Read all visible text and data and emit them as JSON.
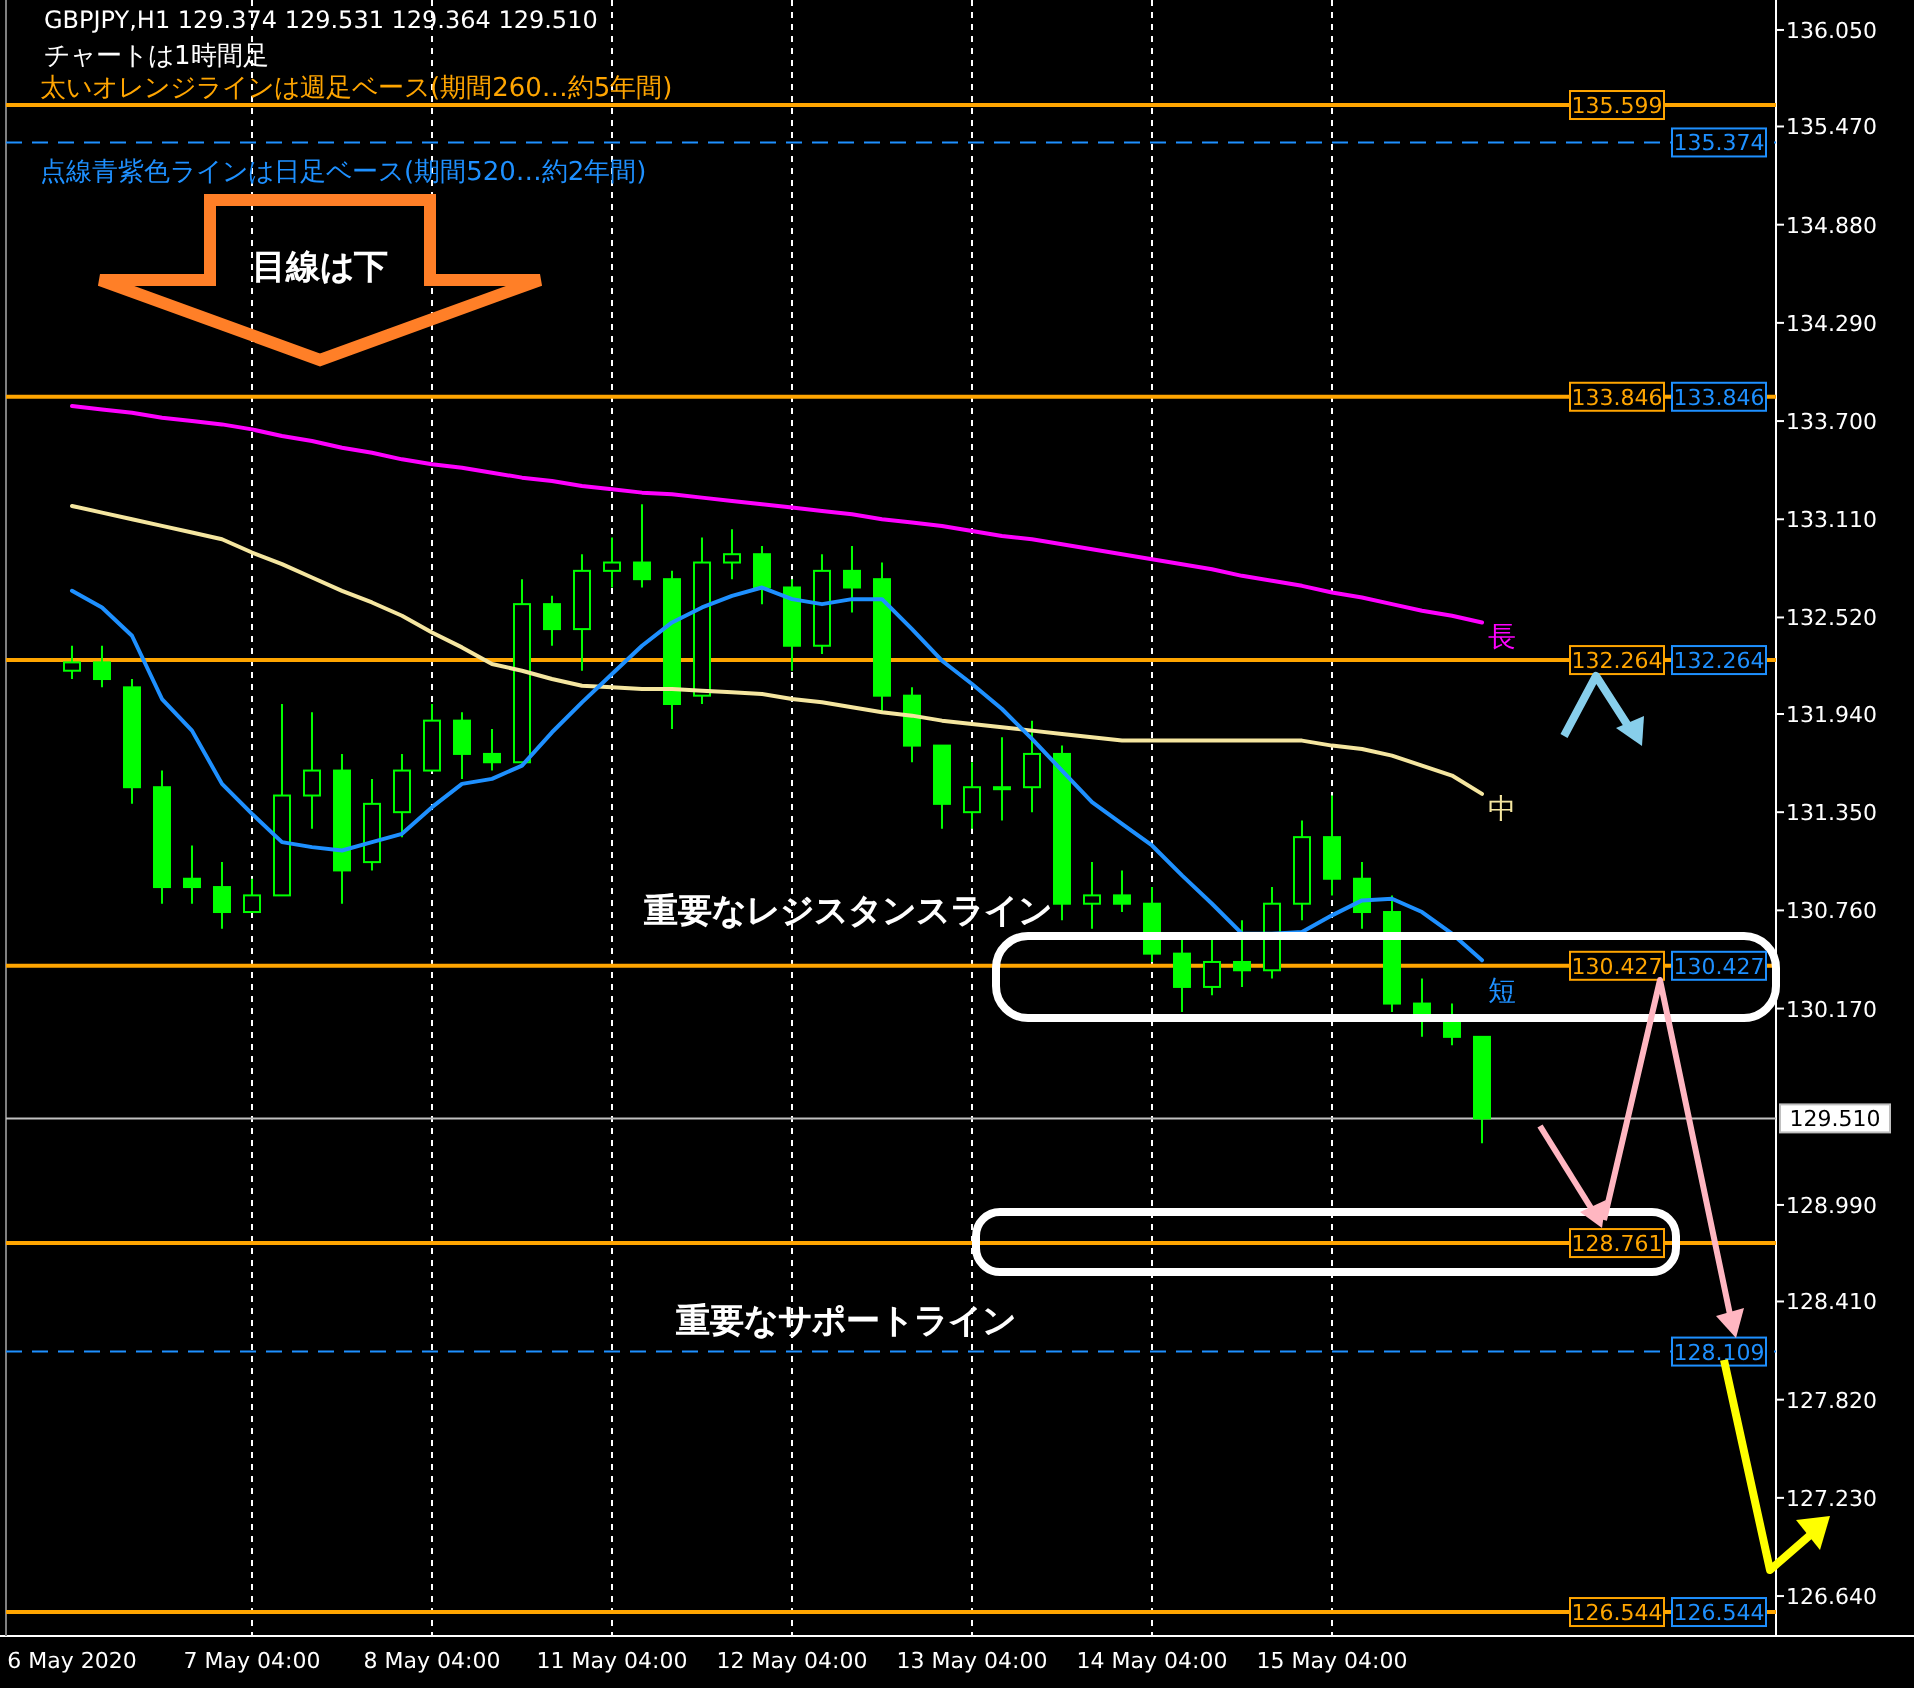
{
  "chart_data": {
    "type": "candlestick",
    "color": "#00ff00",
    "categories": [
      "6 May 2020",
      null,
      null,
      null,
      null,
      null,
      "7 May 04:00",
      null,
      null,
      null,
      null,
      null,
      "8 May 04:00",
      null,
      null,
      null,
      null,
      null,
      "11 May 04:00",
      null,
      null,
      null,
      null,
      null,
      "12 May 04:00",
      null,
      null,
      null,
      null,
      null,
      "13 May 04:00",
      null,
      null,
      null,
      null,
      null,
      "14 May 04:00",
      null,
      null,
      null,
      null,
      null,
      "15 May 04:00",
      null,
      null,
      null,
      null,
      null
    ],
    "ohlc": [
      [
        132.2,
        132.35,
        132.15,
        132.25
      ],
      [
        132.25,
        132.35,
        132.1,
        132.15
      ],
      [
        132.1,
        132.15,
        131.4,
        131.5
      ],
      [
        131.5,
        131.6,
        130.8,
        130.9
      ],
      [
        130.95,
        131.15,
        130.8,
        130.9
      ],
      [
        130.9,
        131.05,
        130.65,
        130.75
      ],
      [
        130.75,
        130.95,
        130.75,
        130.85
      ],
      [
        130.85,
        132.0,
        130.85,
        131.45
      ],
      [
        131.45,
        131.95,
        131.25,
        131.6
      ],
      [
        131.6,
        131.7,
        130.8,
        131.0
      ],
      [
        131.05,
        131.55,
        131.0,
        131.4
      ],
      [
        131.35,
        131.7,
        131.2,
        131.6
      ],
      [
        131.6,
        132.0,
        131.6,
        131.9
      ],
      [
        131.9,
        131.95,
        131.55,
        131.7
      ],
      [
        131.7,
        131.85,
        131.6,
        131.65
      ],
      [
        131.65,
        132.75,
        131.65,
        132.6
      ],
      [
        132.6,
        132.65,
        132.35,
        132.45
      ],
      [
        132.45,
        132.9,
        132.2,
        132.8
      ],
      [
        132.8,
        133.0,
        132.7,
        132.85
      ],
      [
        132.85,
        133.2,
        132.7,
        132.75
      ],
      [
        132.75,
        132.8,
        131.85,
        132.0
      ],
      [
        132.05,
        133.0,
        132.0,
        132.85
      ],
      [
        132.85,
        133.05,
        132.75,
        132.9
      ],
      [
        132.9,
        132.95,
        132.6,
        132.7
      ],
      [
        132.7,
        132.75,
        132.2,
        132.35
      ],
      [
        132.35,
        132.9,
        132.3,
        132.8
      ],
      [
        132.8,
        132.95,
        132.55,
        132.7
      ],
      [
        132.75,
        132.85,
        131.95,
        132.05
      ],
      [
        132.05,
        132.1,
        131.65,
        131.75
      ],
      [
        131.75,
        131.75,
        131.25,
        131.4
      ],
      [
        131.35,
        131.65,
        131.25,
        131.5
      ],
      [
        131.5,
        131.8,
        131.3,
        131.5
      ],
      [
        131.5,
        131.9,
        131.35,
        131.7
      ],
      [
        131.7,
        131.75,
        130.7,
        130.8
      ],
      [
        130.8,
        131.05,
        130.65,
        130.85
      ],
      [
        130.85,
        131.0,
        130.75,
        130.8
      ],
      [
        130.8,
        130.9,
        130.45,
        130.5
      ],
      [
        130.5,
        130.6,
        130.15,
        130.3
      ],
      [
        130.3,
        130.6,
        130.25,
        130.45
      ],
      [
        130.45,
        130.7,
        130.3,
        130.4
      ],
      [
        130.4,
        130.9,
        130.35,
        130.8
      ],
      [
        130.8,
        131.3,
        130.7,
        131.2
      ],
      [
        131.2,
        131.45,
        130.85,
        130.95
      ],
      [
        130.95,
        131.05,
        130.65,
        130.75
      ],
      [
        130.75,
        130.85,
        130.15,
        130.2
      ],
      [
        130.2,
        130.35,
        130.0,
        130.1
      ],
      [
        130.1,
        130.2,
        129.95,
        130.0
      ],
      [
        130.0,
        130.0,
        129.36,
        129.51
      ]
    ],
    "series": [
      {
        "type": "line",
        "name": "長",
        "color": "#ff00ff",
        "values": [
          133.79,
          133.77,
          133.75,
          133.72,
          133.7,
          133.68,
          133.65,
          133.61,
          133.58,
          133.54,
          133.51,
          133.47,
          133.44,
          133.42,
          133.39,
          133.36,
          133.34,
          133.31,
          133.29,
          133.27,
          133.26,
          133.24,
          133.22,
          133.2,
          133.18,
          133.16,
          133.14,
          133.11,
          133.09,
          133.07,
          133.04,
          133.01,
          132.99,
          132.96,
          132.93,
          132.9,
          132.87,
          132.84,
          132.81,
          132.77,
          132.74,
          132.71,
          132.67,
          132.64,
          132.6,
          132.56,
          132.53,
          132.49
        ]
      },
      {
        "type": "line",
        "name": "中",
        "color": "#f5e6a0",
        "values": [
          133.19,
          133.15,
          133.11,
          133.07,
          133.03,
          132.99,
          132.91,
          132.84,
          132.76,
          132.68,
          132.61,
          132.53,
          132.43,
          132.34,
          132.24,
          132.2,
          132.15,
          132.11,
          132.1,
          132.09,
          132.09,
          132.08,
          132.07,
          132.06,
          132.03,
          132.01,
          131.98,
          131.95,
          131.93,
          131.9,
          131.88,
          131.86,
          131.84,
          131.82,
          131.8,
          131.78,
          131.78,
          131.78,
          131.78,
          131.78,
          131.78,
          131.78,
          131.75,
          131.73,
          131.69,
          131.63,
          131.57,
          131.46
        ]
      },
      {
        "type": "line",
        "name": "短",
        "color": "#1e90ff",
        "values": [
          132.68,
          132.58,
          132.41,
          132.03,
          131.84,
          131.52,
          131.34,
          131.17,
          131.14,
          131.12,
          131.17,
          131.22,
          131.38,
          131.52,
          131.55,
          131.63,
          131.83,
          132.01,
          132.18,
          132.35,
          132.49,
          132.58,
          132.65,
          132.7,
          132.63,
          132.6,
          132.63,
          132.63,
          132.45,
          132.26,
          132.12,
          131.97,
          131.79,
          131.6,
          131.41,
          131.28,
          131.15,
          130.97,
          130.8,
          130.62,
          130.62,
          130.63,
          130.73,
          130.82,
          130.83,
          130.75,
          130.62,
          130.46
        ]
      }
    ],
    "ylim": [
      126.4,
      136.23
    ],
    "yticks": [
      {
        "value": 136.05,
        "label": "136.050"
      },
      {
        "value": 135.47,
        "label": "135.470"
      },
      {
        "value": 134.88,
        "label": "134.880"
      },
      {
        "value": 134.29,
        "label": "134.290"
      },
      {
        "value": 133.7,
        "label": "133.700"
      },
      {
        "value": 133.11,
        "label": "133.110"
      },
      {
        "value": 132.52,
        "label": "132.520"
      },
      {
        "value": 131.94,
        "label": "131.940"
      },
      {
        "value": 131.35,
        "label": "131.350"
      },
      {
        "value": 130.76,
        "label": "130.760"
      },
      {
        "value": 130.17,
        "label": "130.170"
      },
      {
        "value": 128.99,
        "label": "128.990"
      },
      {
        "value": 128.41,
        "label": "128.410"
      },
      {
        "value": 127.82,
        "label": "127.820"
      },
      {
        "value": 127.23,
        "label": "127.230"
      },
      {
        "value": 126.64,
        "label": "126.640"
      }
    ],
    "grid": "x",
    "legend": "right",
    "ref_lines": [
      {
        "axis": "y",
        "value": 135.374,
        "label": "135.374",
        "color": "#1e90ff",
        "line_style": "dashed"
      },
      {
        "axis": "y",
        "value": 128.109,
        "label": "128.109",
        "color": "#1e90ff",
        "line_style": "dashed"
      },
      {
        "axis": "y",
        "value": 135.599,
        "label": "135.599",
        "color": "#ffa500",
        "line_style": "solid"
      },
      {
        "axis": "y",
        "value": 133.846,
        "label": "133.846",
        "color": "#ffa500",
        "line_style": "solid"
      },
      {
        "axis": "y",
        "value": 132.264,
        "label": "132.264",
        "color": "#ffa500",
        "line_style": "solid"
      },
      {
        "axis": "y",
        "value": 130.427,
        "label": "130.427",
        "color": "#ffa500",
        "line_style": "solid"
      },
      {
        "axis": "y",
        "value": 128.761,
        "label": "128.761",
        "color": "#ffa500",
        "line_style": "solid"
      },
      {
        "axis": "y",
        "value": 126.544,
        "label": "126.544",
        "color": "#ffa500",
        "line_style": "solid"
      },
      {
        "axis": "y",
        "value": 129.51,
        "label": "129.510",
        "color": "#c0c0c0",
        "line_style": "solid"
      }
    ],
    "annotations": [
      "GBPJPY,H1  129.374 129.531 129.364 129.510",
      "チャートは1時間足",
      "太いオレンジラインは週足ベース(期間260…約5年間)",
      "点線青紫色ラインは日足ベース(期間520…約2年間)",
      "目線は下",
      "重要なレジスタンスライン",
      "重要なサポートライン",
      {
        "text": "133.846",
        "y": 133.846
      },
      {
        "text": "132.264",
        "y": 132.264
      },
      {
        "text": "130.427",
        "y": 130.427
      },
      {
        "text": "126.544",
        "y": 126.544
      }
    ]
  }
}
